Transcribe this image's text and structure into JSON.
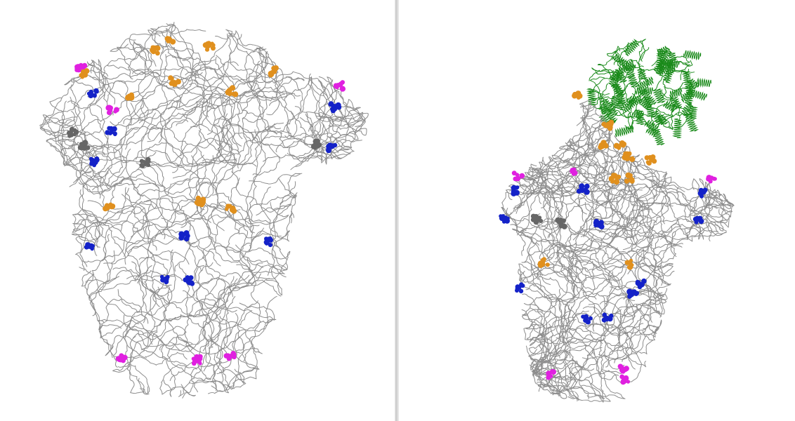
{
  "figure": {
    "panels": [
      {
        "id": "left",
        "description_for_agent": ""
      },
      {
        "id": "right",
        "description_for_agent": ""
      }
    ],
    "colors": {
      "backbone": "#8c8c8c",
      "blue_sites": "#1422c8",
      "orange_sites": "#e0901e",
      "magenta_sites": "#e020e0",
      "gray_sites": "#666666",
      "green_partner": "#1a8a1a",
      "divider": "#d0d0d0"
    }
  }
}
